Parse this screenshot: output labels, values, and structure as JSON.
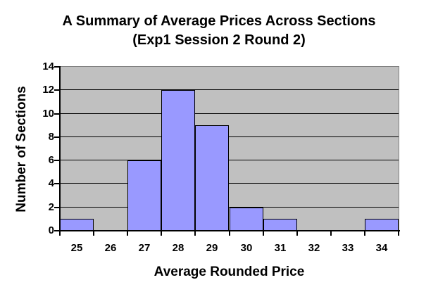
{
  "title": {
    "line1": "A Summary of Average Prices Across Sections",
    "line2": "(Exp1 Session 2 Round 2)"
  },
  "chart_data": {
    "type": "bar",
    "title": "A Summary of Average Prices Across Sections (Exp1 Session 2 Round 2)",
    "categories": [
      "25",
      "26",
      "27",
      "28",
      "29",
      "30",
      "31",
      "32",
      "33",
      "34"
    ],
    "values": [
      1,
      0,
      6,
      12,
      9,
      2,
      1,
      0,
      0,
      1
    ],
    "xlabel": "Average Rounded Price",
    "ylabel": "Number of Sections",
    "ylim": [
      0,
      14
    ],
    "yticks": [
      0,
      2,
      4,
      6,
      8,
      10,
      12,
      14
    ],
    "grid": true,
    "legend": false,
    "colors": {
      "bar_fill": "#9999FF",
      "bar_border": "#000000",
      "plot_bg": "#C0C0C0",
      "plot_border": "#808080",
      "gridline": "#000000",
      "axis": "#000000",
      "text": "#000000",
      "background": "#FFFFFF"
    }
  }
}
